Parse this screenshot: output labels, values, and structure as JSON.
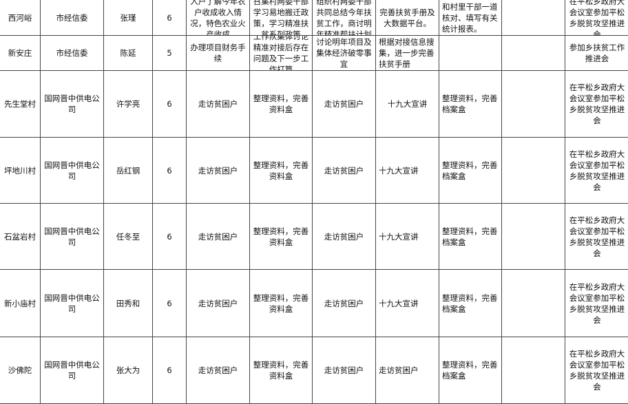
{
  "rows": [
    {
      "village": "西河峪",
      "unit": "市经信委",
      "person": "张瑾",
      "days": "6",
      "c5": "入户了解今年农户收成收入情况，特色农业火产收成",
      "c6": "召集村两委干部学习易地搬迁政策，学习精准扶贫系列政策",
      "c7": "组织村两委干部共同总结今年扶贫工作，商讨明年精准帮扶计划",
      "c8": "完善扶贫手册及大数据平台。",
      "c9": "和村里干部一道核对、填写有关统计报表。",
      "c10": "",
      "c11": "在平松乡政府大会议室参加平松乡脱贫攻坚推进会"
    },
    {
      "village": "新安庄",
      "unit": "市经信委",
      "person": "陈延",
      "days": "5",
      "c5": "办理项目财务手续",
      "c6": "工作队集体讨论精准对接后存在问题及下一步工作打算",
      "c7": "讨论明年项目及集体经济破零事宜",
      "c8": "根据对接信息搜集，进一步完善扶贫手册",
      "c9": "",
      "c10": "",
      "c11": "参加乡扶贫工作推进会"
    },
    {
      "village": "先生堂村",
      "unit": "国网晋中供电公司",
      "person": "许学亮",
      "days": "6",
      "c5": "走访贫困户",
      "c6": "整理资料，完善资料盒",
      "c7": "走访贫困户",
      "c8": "十九大宣讲",
      "c9": "整理资料，完善档案盒",
      "c10": "",
      "c11": "在平松乡政府大会议室参加平松乡脱贫攻坚推进会"
    },
    {
      "village": "坪地川村",
      "unit": "国网晋中供电公司",
      "person": "岳红钢",
      "days": "6",
      "c5": "走访贫困户",
      "c6": "整理资料，完善资料盒",
      "c7": "走访贫困户",
      "c8": "十九大宣讲",
      "c9": "整理资料，完善档案盒",
      "c10": "",
      "c11": "在平松乡政府大会议室参加平松乡脱贫攻坚推进会"
    },
    {
      "village": "石盆岩村",
      "unit": "国网晋中供电公司",
      "person": "任冬至",
      "days": "6",
      "c5": "走访贫困户",
      "c6": "整理资料，完善资料盒",
      "c7": "走访贫困户",
      "c8": "十九大宣讲",
      "c9": "整理资料，完善档案盒",
      "c10": "",
      "c11": "在平松乡政府大会议室参加平松乡脱贫攻坚推进会"
    },
    {
      "village": "新小庙村",
      "unit": "国网晋中供电公司",
      "person": "田秀和",
      "days": "6",
      "c5": "走访贫困户",
      "c6": "整理资料，完善资料盒",
      "c7": "走访贫困户",
      "c8": "十九大宣讲",
      "c9": "整理资料，完善档案盒",
      "c10": "",
      "c11": "在平松乡政府大会议室参加平松乡脱贫攻坚推进会"
    },
    {
      "village": "沙佛陀",
      "unit": "国网晋中供电公司",
      "person": "张大为",
      "days": "6",
      "c5": "走访贫困户",
      "c6": "整理资料，完善资料盒",
      "c7": "走访贫困户",
      "c8": "走访贫困户",
      "c9": "整理资料，完善档案盒",
      "c10": "",
      "c11": "在平松乡政府大会议室参加平松乡脱贫攻坚推进会"
    }
  ]
}
